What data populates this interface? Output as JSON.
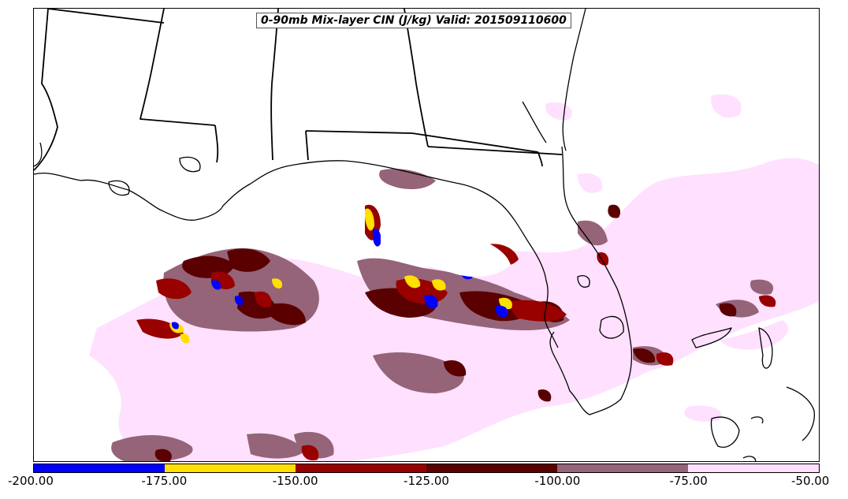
{
  "map": {
    "title": "0-90mb Mix-layer CIN (J/kg) Valid: 201509110600",
    "colors": {
      "background": "#ffffff",
      "border": "#000000",
      "light": "#ffe0ff",
      "mauve": "#956478",
      "darkred": "#5a0000",
      "red": "#990000",
      "yellow": "#ffe000",
      "blue": "#0000ff"
    }
  },
  "colorbar": {
    "segments": [
      {
        "color": "#0000ff"
      },
      {
        "color": "#ffe000"
      },
      {
        "color": "#990000"
      },
      {
        "color": "#5a0000"
      },
      {
        "color": "#956478"
      },
      {
        "color": "#ffe0ff"
      }
    ],
    "ticks": [
      "-200.00",
      "-175.00",
      "-150.00",
      "-125.00",
      "-100.00",
      "-75.00",
      "-50.00"
    ]
  }
}
